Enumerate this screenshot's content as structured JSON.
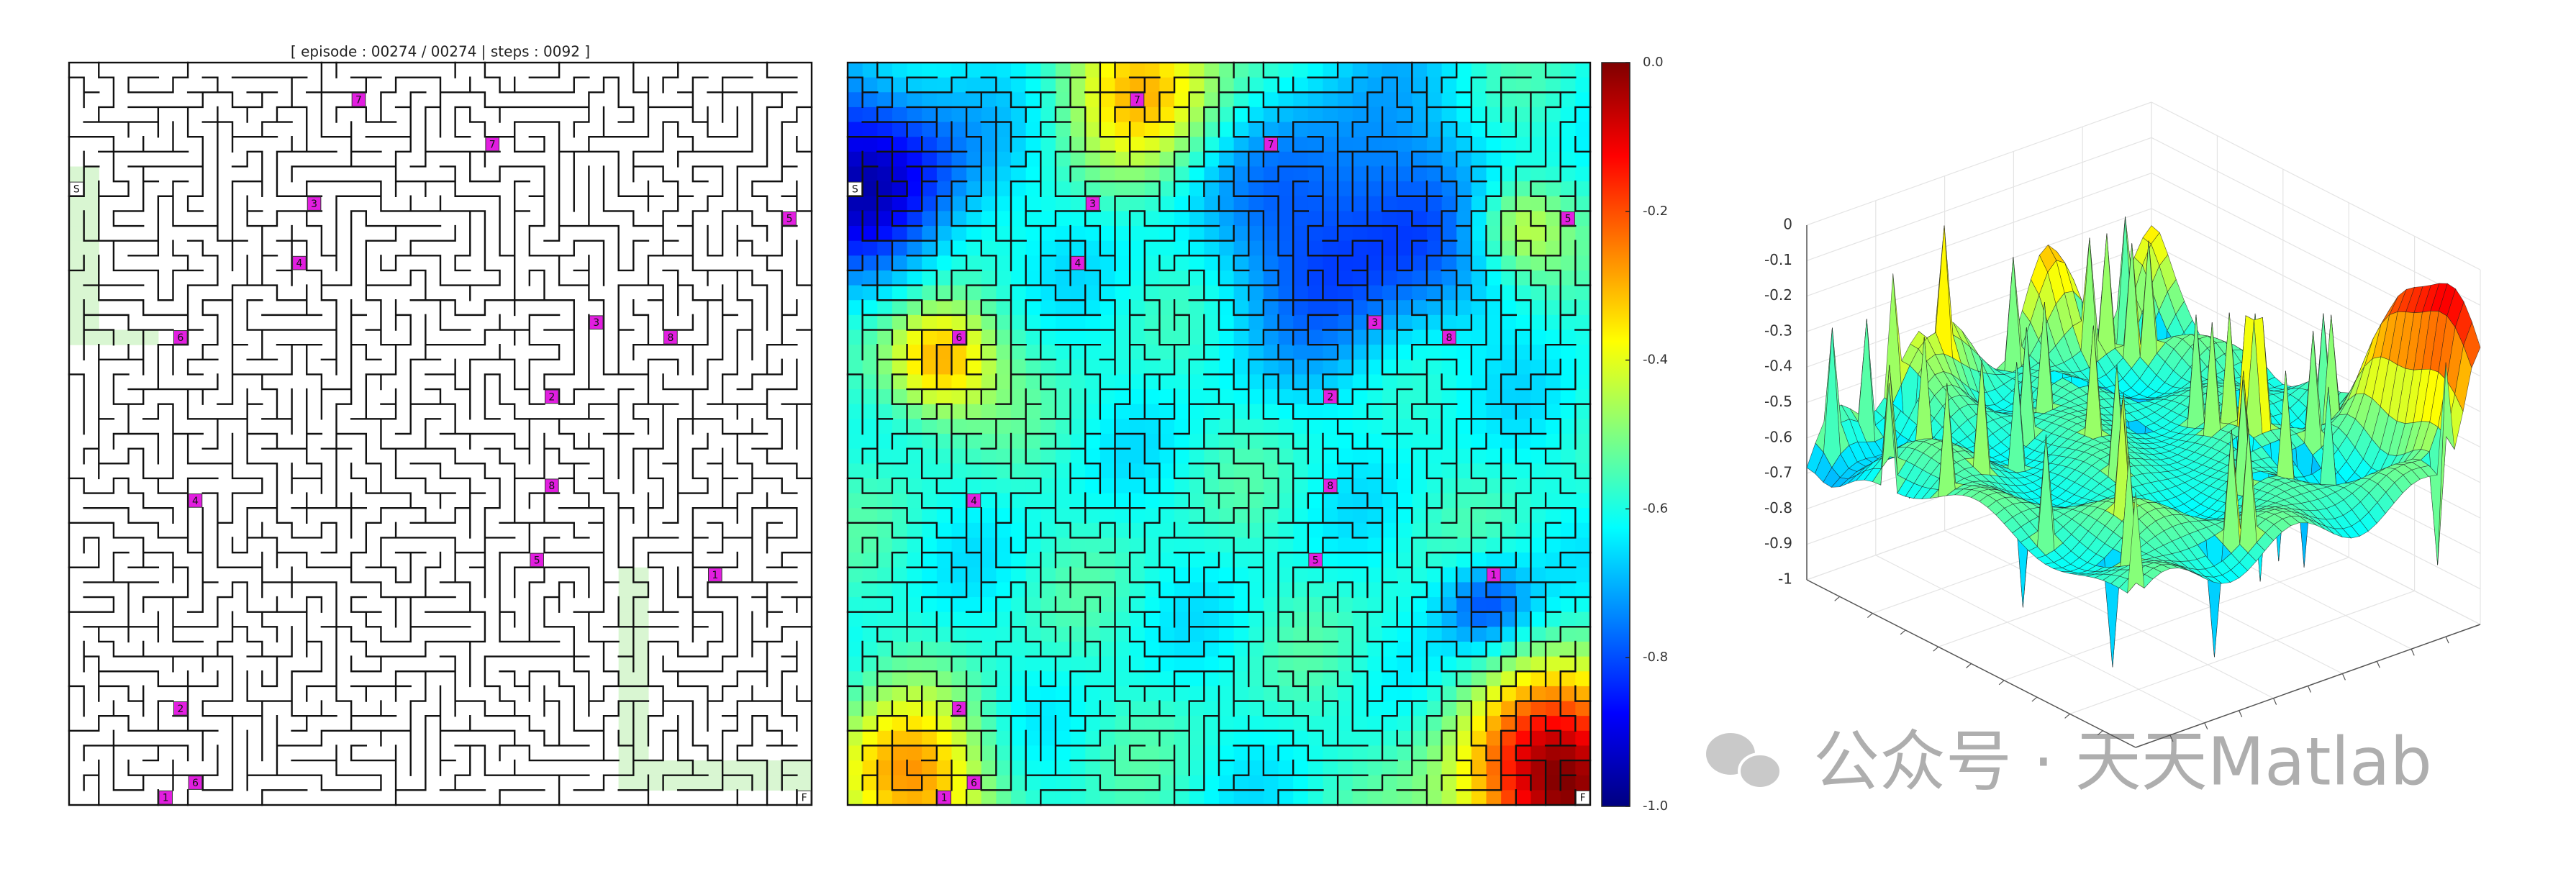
{
  "header": {
    "title": "[ episode : 00274 / 00274 | steps : 0092 ]"
  },
  "maze": {
    "start": "S",
    "finish": "F",
    "markers": [
      "7",
      "7",
      "3",
      "5",
      "4",
      "6",
      "3",
      "8",
      "2",
      "8",
      "4",
      "5",
      "1",
      "2",
      "1",
      "6"
    ]
  },
  "colorbar": {
    "ylim": [
      -1,
      0
    ],
    "ticks": [
      {
        "value": 0,
        "label": "0.0"
      },
      {
        "value": -0.2,
        "label": "-0.2"
      },
      {
        "value": -0.4,
        "label": "-0.4"
      },
      {
        "value": -0.6,
        "label": "-0.6"
      },
      {
        "value": -0.8,
        "label": "-0.8"
      },
      {
        "value": -1,
        "label": "-1.0"
      }
    ]
  },
  "surface": {
    "zlim": [
      -1,
      0
    ],
    "zticks": [
      0,
      -0.1,
      -0.2,
      -0.3,
      -0.4,
      -0.5,
      -0.6,
      -0.7,
      -0.8,
      -0.9,
      -1
    ]
  },
  "watermark": "公众号 · 天天Matlab"
}
